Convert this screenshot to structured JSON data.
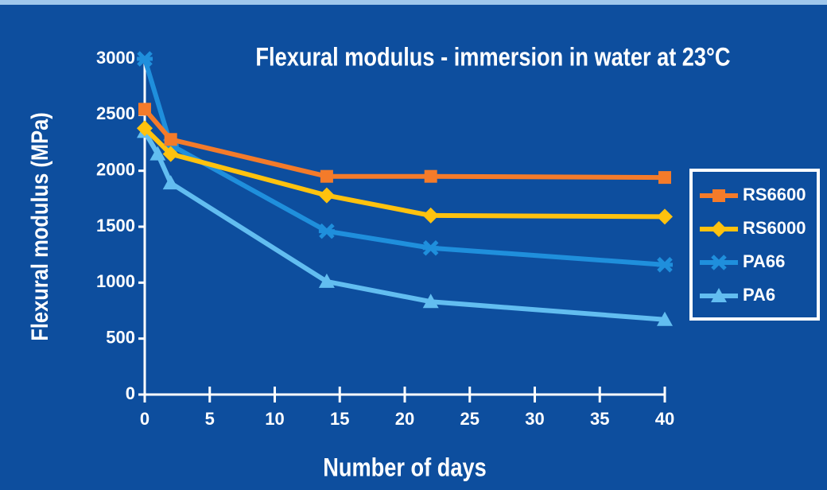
{
  "chart_data": {
    "type": "line",
    "title": "Flexural modulus - immersion in water at 23°C",
    "xlabel": "Number of days",
    "ylabel": "Flexural modulus (MPa)",
    "xlim": [
      0,
      40
    ],
    "xticks": [
      0,
      5,
      10,
      15,
      20,
      25,
      30,
      35,
      40
    ],
    "ylim": [
      0,
      3000
    ],
    "yticks": [
      0,
      500,
      1000,
      1500,
      2000,
      2500,
      3000
    ],
    "legend": "right",
    "series": [
      {
        "name": "RS6600",
        "color": "#f47b2a",
        "marker": "square",
        "x": [
          0,
          2,
          14,
          22,
          40
        ],
        "values": [
          2550,
          2280,
          1950,
          1950,
          1940
        ]
      },
      {
        "name": "RS6000",
        "color": "#ffc20e",
        "marker": "diamond",
        "x": [
          0,
          2,
          14,
          22,
          40
        ],
        "values": [
          2380,
          2150,
          1780,
          1600,
          1590
        ]
      },
      {
        "name": "PA66",
        "color": "#1f8fdc",
        "marker": "cross",
        "x": [
          0,
          2,
          14,
          22,
          40
        ],
        "values": [
          3000,
          2230,
          1460,
          1310,
          1160
        ]
      },
      {
        "name": "PA6",
        "color": "#62bdf0",
        "marker": "triangle",
        "x": [
          0,
          1,
          2,
          14,
          22,
          40
        ],
        "values": [
          2350,
          2150,
          1890,
          1010,
          830,
          670
        ]
      }
    ]
  }
}
